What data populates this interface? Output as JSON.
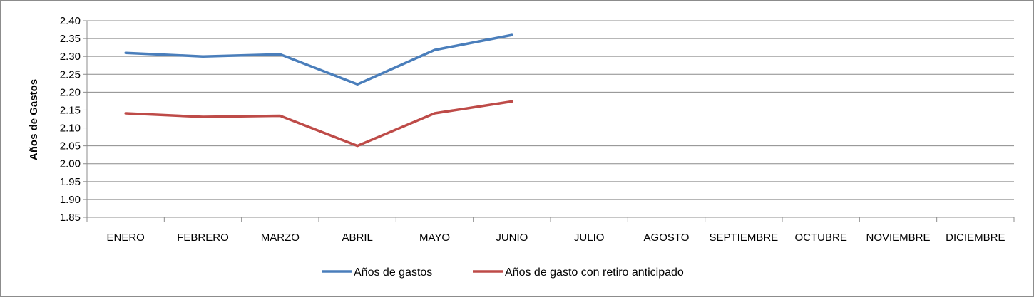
{
  "chart_data": {
    "type": "line",
    "ylabel": "Años de Gastos",
    "categories": [
      "ENERO",
      "FEBRERO",
      "MARZO",
      "ABRIL",
      "MAYO",
      "JUNIO",
      "JULIO",
      "AGOSTO",
      "SEPTIEMBRE",
      "OCTUBRE",
      "NOVIEMBRE",
      "DICIEMBRE"
    ],
    "ylim": [
      1.85,
      2.4
    ],
    "yticks": [
      "1.85",
      "1.90",
      "1.95",
      "2.00",
      "2.05",
      "2.10",
      "2.15",
      "2.20",
      "2.25",
      "2.30",
      "2.35",
      "2.40"
    ],
    "grid": true,
    "legend_position": "bottom",
    "series": [
      {
        "name": "Años de gastos",
        "color": "#4a7ebb",
        "values": [
          2.31,
          2.3,
          2.306,
          2.222,
          2.318,
          2.36,
          null,
          null,
          null,
          null,
          null,
          null
        ]
      },
      {
        "name": "Años de gasto con retiro anticipado",
        "color": "#be4b48",
        "values": [
          2.141,
          2.131,
          2.134,
          2.05,
          2.141,
          2.174,
          null,
          null,
          null,
          null,
          null,
          null
        ]
      }
    ]
  }
}
